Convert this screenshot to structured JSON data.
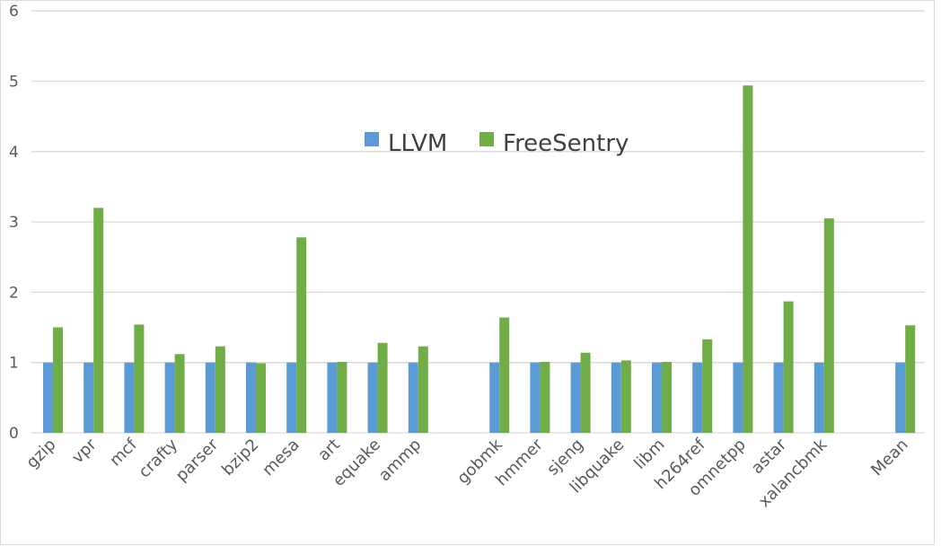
{
  "chart_data": {
    "type": "bar",
    "categories": [
      "gzip",
      "vpr",
      "mcf",
      "crafty",
      "parser",
      "bzip2",
      "mesa",
      "art",
      "equake",
      "ammp",
      "",
      "gobmk",
      "hmmer",
      "sjeng",
      "libquake",
      "libm",
      "h264ref",
      "omnetpp",
      "astar",
      "xalancbmk",
      "",
      "Mean"
    ],
    "series": [
      {
        "name": "LLVM",
        "color": "#5B9BD5",
        "values": [
          1,
          1,
          1,
          1,
          1,
          1,
          1,
          1,
          1,
          1,
          null,
          1,
          1,
          1,
          1,
          1,
          1,
          1,
          1,
          1,
          null,
          1
        ]
      },
      {
        "name": "FreeSentry",
        "color": "#70AD47",
        "values": [
          1.5,
          3.2,
          1.54,
          1.12,
          1.23,
          0.99,
          2.78,
          1.01,
          1.28,
          1.23,
          null,
          1.64,
          1.01,
          1.14,
          1.03,
          1.01,
          1.33,
          4.94,
          1.87,
          3.05,
          null,
          1.53
        ]
      }
    ],
    "yticks": [
      "0",
      "1",
      "2",
      "3",
      "4",
      "5",
      "6"
    ],
    "ylim": [
      0,
      6
    ],
    "grid": true,
    "legend": "top-center",
    "title": "",
    "xlabel": "",
    "ylabel": ""
  }
}
